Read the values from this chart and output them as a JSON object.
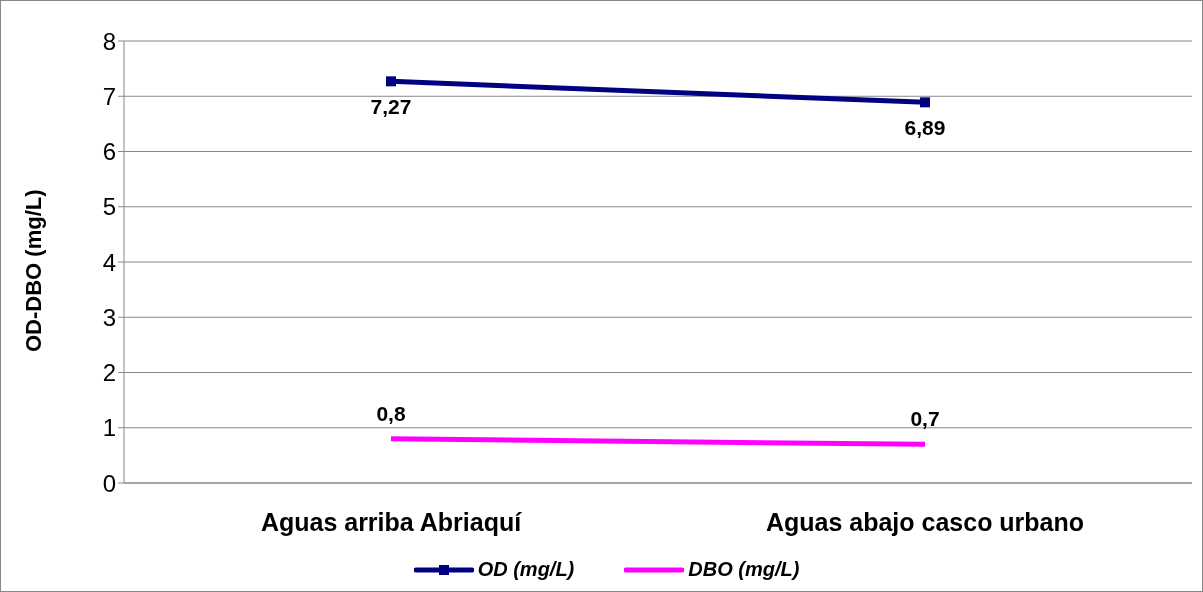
{
  "chart_data": {
    "type": "line",
    "ylabel": "OD-DBO (mg/L)",
    "categories": [
      "Aguas arriba Abriaquí",
      "Aguas abajo casco urbano"
    ],
    "series": [
      {
        "name": "OD (mg/L)",
        "color": "#000080",
        "values": [
          7.27,
          6.89
        ],
        "marker": "square",
        "value_labels": [
          "7,27",
          "6,89"
        ]
      },
      {
        "name": "DBO (mg/L)",
        "color": "#ff00ff",
        "values": [
          0.8,
          0.7
        ],
        "marker": "none",
        "value_labels": [
          "0,8",
          "0,7"
        ]
      }
    ],
    "ylim": [
      0,
      8
    ],
    "yticks": [
      0,
      1,
      2,
      3,
      4,
      5,
      6,
      7,
      8
    ],
    "grid": "y",
    "legend": "bottom"
  }
}
